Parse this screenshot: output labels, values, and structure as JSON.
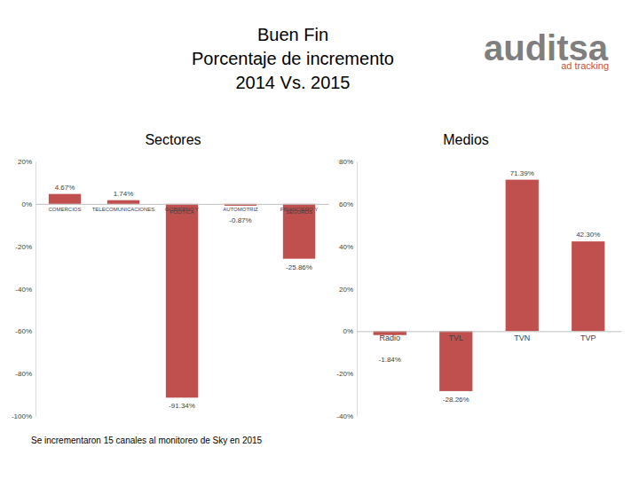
{
  "header": {
    "title_lines": [
      "Buen Fin",
      "Porcentaje de incremento",
      "2014 Vs. 2015"
    ],
    "logo": "auditsa",
    "logo_tagline": "ad tracking"
  },
  "footnote": "Se incrementaron 15 canales al monitoreo de Sky  en 2015",
  "chart_data": [
    {
      "type": "bar",
      "title": "Sectores",
      "categories": [
        "COMERCIOS",
        "TELECOMUNICACIONES",
        "GOBIERNO Y POLITICA",
        "AUTOMOTRIZ",
        "FINANCIERO Y SEGUROS"
      ],
      "values": [
        4.67,
        1.74,
        -91.34,
        -0.87,
        -25.86
      ],
      "value_labels": [
        "4.67%",
        "1.74%",
        "-91.34%",
        "-0.87%",
        "-25.86%"
      ],
      "color": "#c0504d",
      "data_labels": true,
      "grid": false,
      "ylim": [
        -100,
        20
      ],
      "yticks": [
        {
          "value": 20,
          "label": "20%"
        },
        {
          "value": 0,
          "label": "0%"
        },
        {
          "value": -20,
          "label": "-20%"
        },
        {
          "value": -40,
          "label": "-40%"
        },
        {
          "value": -60,
          "label": "-60%"
        },
        {
          "value": -80,
          "label": "-80%"
        },
        {
          "value": -100,
          "label": "-100%"
        }
      ]
    },
    {
      "type": "bar",
      "title": "Medios",
      "categories": [
        "Radio",
        "TVL",
        "TVN",
        "TVP"
      ],
      "values": [
        -1.84,
        -28.26,
        71.39,
        42.3
      ],
      "value_labels": [
        "-1.84%",
        "-28.26%",
        "71.39%",
        "42.30%"
      ],
      "color": "#c0504d",
      "data_labels": true,
      "grid": false,
      "ylim": [
        -40,
        80
      ],
      "yticks": [
        {
          "value": 80,
          "label": "80%"
        },
        {
          "value": 60,
          "label": "60%"
        },
        {
          "value": 40,
          "label": "40%"
        },
        {
          "value": 20,
          "label": "20%"
        },
        {
          "value": 0,
          "label": "0%"
        },
        {
          "value": -20,
          "label": "-20%"
        },
        {
          "value": -40,
          "label": "-40%"
        }
      ]
    }
  ]
}
